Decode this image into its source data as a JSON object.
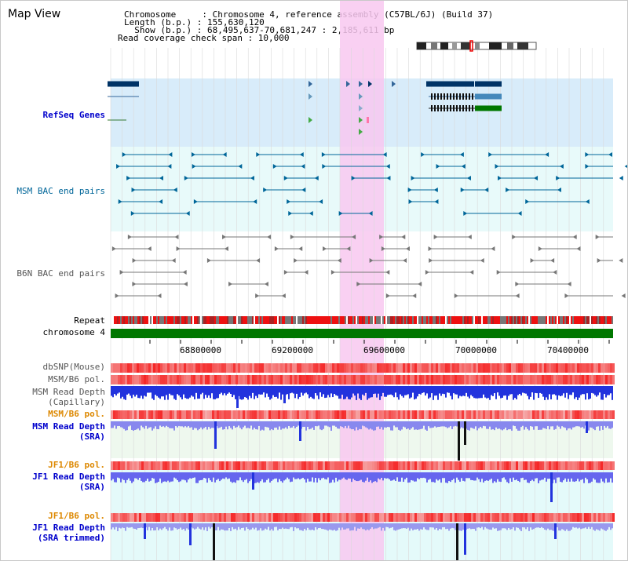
{
  "header": {
    "title": "Map View",
    "info_lines": [
      "Chromosome     : Chromosome 4, reference assembly (C57BL/6J) (Build 37)",
      "Length (b.p.) : 155,630,120",
      "  Show (b.p.) : 68,495,637-70,681,247 : 2,185,611 bp",
      "Read coverage check span : 10,000"
    ]
  },
  "tracks": {
    "refseq": "RefSeq Genes",
    "msm_bac": "MSM BAC end pairs",
    "b6n_bac": "B6N BAC end pairs",
    "repeat": "Repeat",
    "chromosome": "chromosome 4",
    "dbsnp": "dbSNP(Mouse)",
    "msm_b6_pol_1": "MSM/B6 pol.",
    "msm_read_depth_cap_1": "MSM Read Depth",
    "msm_read_depth_cap_2": "(Capillary)",
    "msm_b6_pol_2": "MSM/B6 pol.",
    "msm_read_depth_sra_1": "MSM Read Depth",
    "msm_read_depth_sra_2": "(SRA)",
    "jf1_b6_pol_1": "JF1/B6 pol.",
    "jf1_read_depth_sra_1": "JF1 Read Depth",
    "jf1_read_depth_sra_2": "(SRA)",
    "jf1_b6_pol_2": "JF1/B6 pol.",
    "jf1_read_depth_trim_1": "JF1 Read Depth",
    "jf1_read_depth_trim_2": "(SRA trimmed)"
  },
  "axis": {
    "ticks": [
      "68800000",
      "69200000",
      "69600000",
      "70000000",
      "70400000"
    ]
  },
  "colors": {
    "highlight": "#f8c8f0",
    "refseq_bg": "#d8ecfa",
    "bac_bg": "#e8fafa",
    "chromosome": "#007700",
    "depth_blue": "#2222ee"
  }
}
